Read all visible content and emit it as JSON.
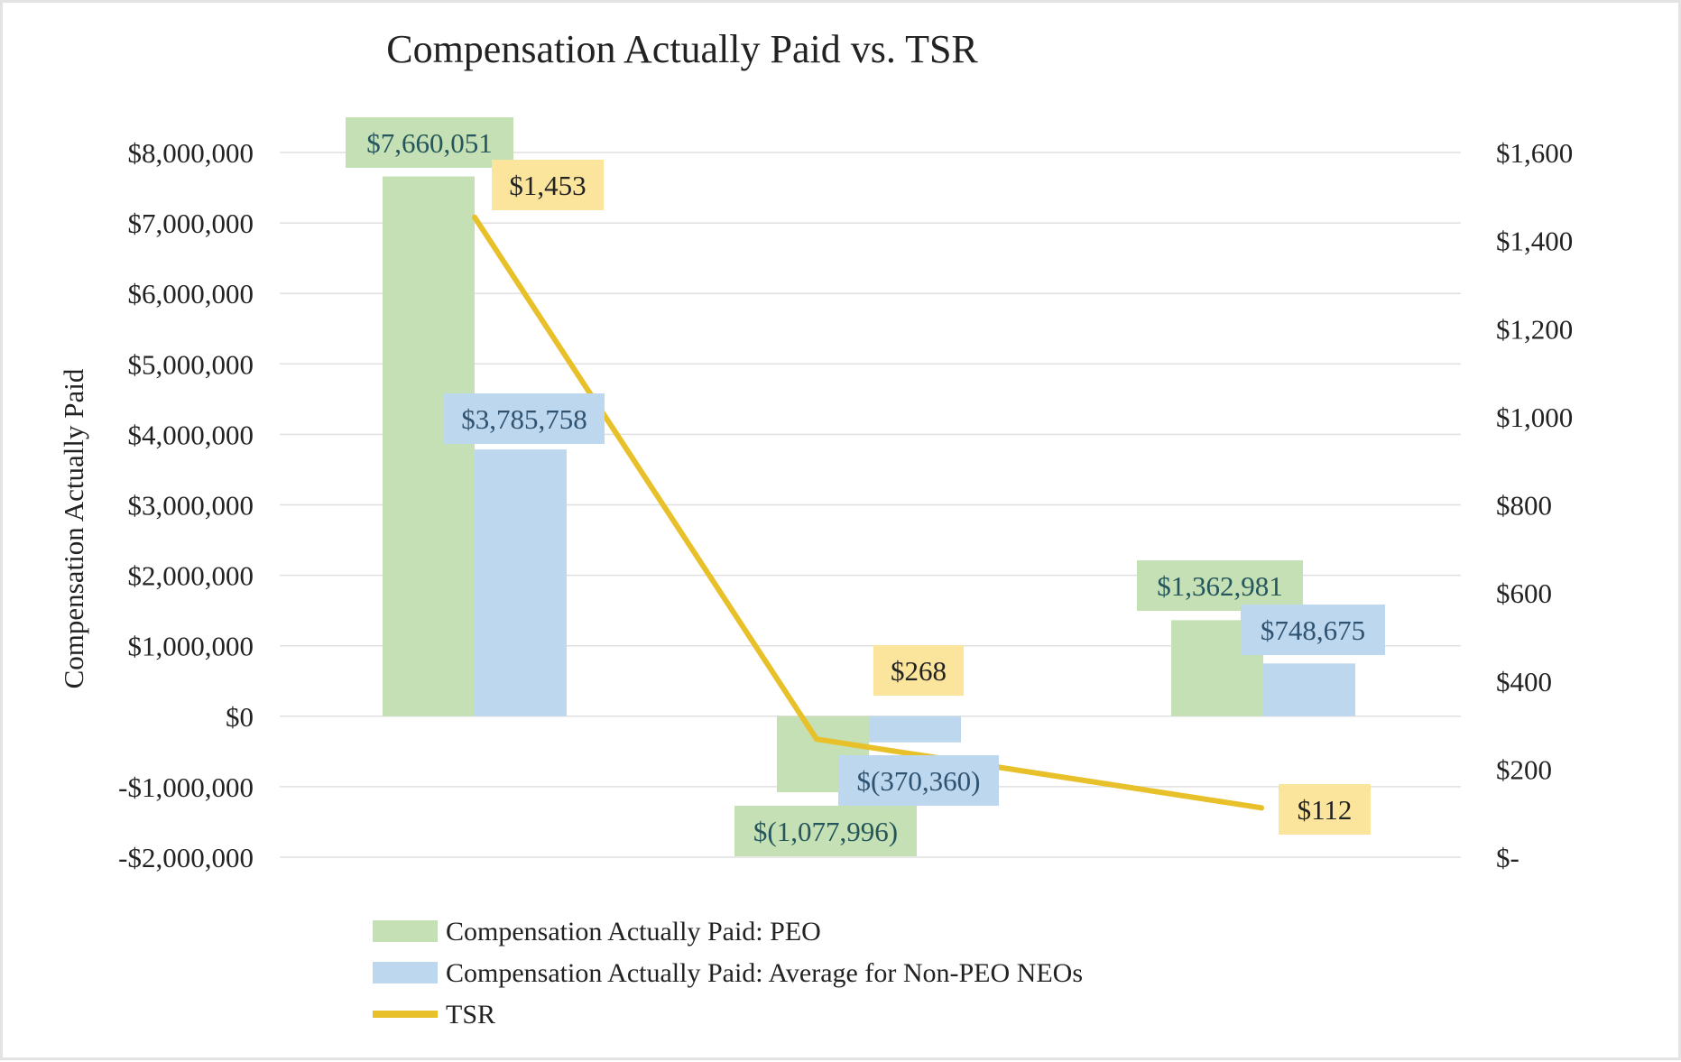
{
  "colors": {
    "peo": "#c5e0b4",
    "neo": "#bdd7ee",
    "tsr": "#e8c02a",
    "tsr_label_bg": "#fbe59c",
    "grid": "#e0e0e0",
    "text": "#222222",
    "peo_label_text": "#24565c",
    "neo_label_text": "#2f5270"
  },
  "chart_data": {
    "type": "bar",
    "title": "Compensation Actually Paid vs. TSR",
    "xlabel": "",
    "ylabel": "Compensation Actually Paid",
    "categories": [
      "",
      "",
      ""
    ],
    "ylim": [
      -2000000,
      8000000
    ],
    "y2lim": [
      0,
      1600
    ],
    "y_ticks": [
      {
        "value": 8000000,
        "label": "$8,000,000"
      },
      {
        "value": 7000000,
        "label": "$7,000,000"
      },
      {
        "value": 6000000,
        "label": "$6,000,000"
      },
      {
        "value": 5000000,
        "label": "$5,000,000"
      },
      {
        "value": 4000000,
        "label": "$4,000,000"
      },
      {
        "value": 3000000,
        "label": "$3,000,000"
      },
      {
        "value": 2000000,
        "label": "$2,000,000"
      },
      {
        "value": 1000000,
        "label": "$1,000,000"
      },
      {
        "value": 0,
        "label": "$0"
      },
      {
        "value": -1000000,
        "label": "-$1,000,000"
      },
      {
        "value": -2000000,
        "label": "-$2,000,000"
      }
    ],
    "y2_ticks": [
      {
        "value": 1600,
        "label": "$1,600"
      },
      {
        "value": 1400,
        "label": "$1,400"
      },
      {
        "value": 1200,
        "label": "$1,200"
      },
      {
        "value": 1000,
        "label": "$1,000"
      },
      {
        "value": 800,
        "label": "$800"
      },
      {
        "value": 600,
        "label": "$600"
      },
      {
        "value": 400,
        "label": "$400"
      },
      {
        "value": 200,
        "label": "$200"
      },
      {
        "value": 0,
        "label": "$-"
      }
    ],
    "series": [
      {
        "name": "Compensation Actually Paid: PEO",
        "type": "bar",
        "axis": "left",
        "values": [
          7660051,
          -1077996,
          1362981
        ],
        "labels": [
          "$7,660,051",
          "$(1,077,996)",
          "$1,362,981"
        ]
      },
      {
        "name": "Compensation Actually Paid: Average for Non-PEO NEOs",
        "type": "bar",
        "axis": "left",
        "values": [
          3785758,
          -370360,
          748675
        ],
        "labels": [
          "$3,785,758",
          "$(370,360)",
          "$748,675"
        ]
      },
      {
        "name": "TSR",
        "type": "line",
        "axis": "right",
        "values": [
          1453,
          268,
          112
        ],
        "labels": [
          "$1,453",
          "$268",
          "$112"
        ]
      }
    ],
    "legend_position": "bottom-left",
    "grid": true
  }
}
